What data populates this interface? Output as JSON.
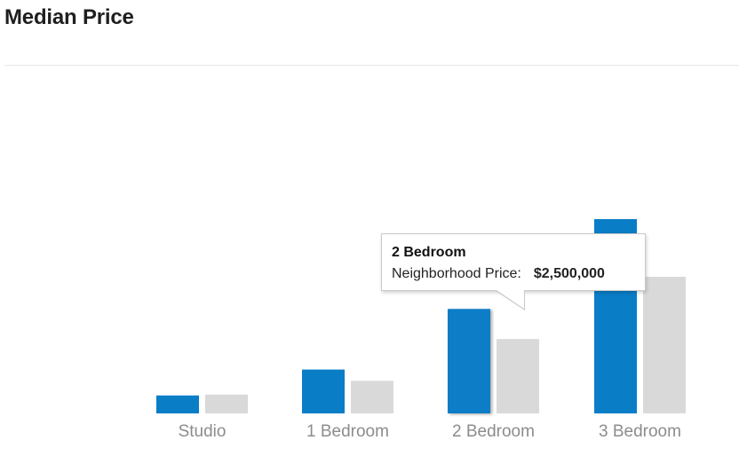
{
  "header": {
    "title": "Median Price"
  },
  "chart_data": {
    "type": "bar",
    "title": "Median Price",
    "xlabel": "",
    "ylabel": "",
    "categories": [
      "Studio",
      "1 Bedroom",
      "2 Bedroom",
      "3 Bedroom"
    ],
    "series": [
      {
        "values": [
          430000,
          1050000,
          2500000,
          4650000
        ],
        "color": "#0a7dc7"
      },
      {
        "values": [
          450000,
          780000,
          1780000,
          3270000
        ],
        "color": "#d9d9d9"
      }
    ],
    "ylim": [
      0,
      4650000
    ],
    "grid": false,
    "legend": "none",
    "highlighted_category": "2 Bedroom"
  },
  "tooltip": {
    "title": "2 Bedroom",
    "label": "Neighborhood Price:",
    "value": "$2,500,000"
  }
}
